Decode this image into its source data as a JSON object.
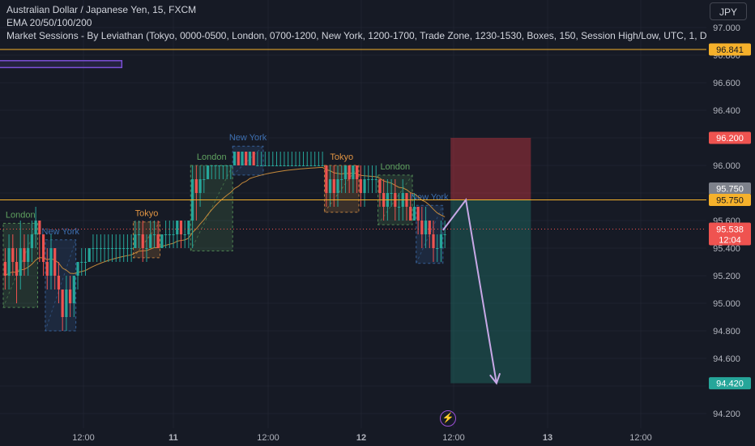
{
  "legend": {
    "symbol_line": "Australian Dollar / Japanese Yen, 15, FXCM",
    "ema_line": "EMA 20/50/100/200",
    "sessions_line": "Market Sessions - By Leviathan (Tokyo, 0000-0500, London, 0700-1200, New York, 1200-1700, Trade Zone, 1230-1530, Boxes, 150, Session High/Low, UTC, 1, D"
  },
  "currency_button": "JPY",
  "colors": {
    "background": "#161a25",
    "grid": "#1f2330",
    "up_candle": "#26a69a",
    "down_candle": "#ef5350",
    "ema": "#c5893a",
    "horizontal_line": "#f5b12b",
    "tokyo": "#e09443",
    "london": "#5fa15f",
    "new_york": "#3d6fb0",
    "stop_zone": "#a8323c",
    "target_zone": "#1e6e66",
    "arrow": "#c7a8e6",
    "highlight_box": "#7b4fd6",
    "current_price_line": "#ef5350"
  },
  "chart_data": {
    "type": "candlestick",
    "symbol": "Australian Dollar / Japanese Yen",
    "interval": "15",
    "source": "FXCM",
    "y_axis": {
      "ticks": [
        "97.000",
        "96.800",
        "96.600",
        "96.400",
        "96.200",
        "96.000",
        "95.800",
        "95.600",
        "95.400",
        "95.200",
        "95.000",
        "94.800",
        "94.600",
        "94.400",
        "94.200"
      ],
      "ylim": [
        94.15,
        97.05
      ]
    },
    "x_axis": {
      "ticks": [
        {
          "label": "12:00",
          "bold": false
        },
        {
          "label": "11",
          "bold": true
        },
        {
          "label": "12:00",
          "bold": false
        },
        {
          "label": "12",
          "bold": true
        },
        {
          "label": "12:00",
          "bold": false
        },
        {
          "label": "13",
          "bold": true
        },
        {
          "label": "12:00",
          "bold": false
        }
      ]
    },
    "price_labels": [
      {
        "value": "96.841",
        "price": 96.841,
        "kind": "line"
      },
      {
        "value": "96.200",
        "price": 96.2,
        "kind": "stop"
      },
      {
        "value": "95.750",
        "price": 95.75,
        "kind": "entry"
      },
      {
        "value": "95.750",
        "price": 95.75,
        "kind": "line"
      },
      {
        "value": "95.538",
        "countdown": "12:04",
        "price": 95.538,
        "kind": "last"
      },
      {
        "value": "94.420",
        "price": 94.42,
        "kind": "target"
      }
    ],
    "sessions": [
      {
        "label": "London",
        "type": "london",
        "start": 0,
        "end": 9,
        "high": 95.58,
        "low": 94.97
      },
      {
        "label": "New York",
        "type": "new_york",
        "start": 11,
        "end": 19,
        "high": 95.46,
        "low": 94.8
      },
      {
        "label": "Tokyo",
        "type": "tokyo",
        "start": 34,
        "end": 41,
        "high": 95.59,
        "low": 95.33
      },
      {
        "label": "London",
        "type": "london",
        "start": 49,
        "end": 60,
        "high": 96.0,
        "low": 95.38
      },
      {
        "label": "New York",
        "type": "new_york",
        "start": 60,
        "end": 68,
        "high": 96.14,
        "low": 95.93
      },
      {
        "label": "Tokyo",
        "type": "tokyo",
        "start": 84,
        "end": 93,
        "high": 96.0,
        "low": 95.66
      },
      {
        "label": "London",
        "type": "london",
        "start": 98,
        "end": 107,
        "high": 95.93,
        "low": 95.57
      },
      {
        "label": "New York",
        "type": "new_york",
        "start": 108,
        "end": 115,
        "high": 95.71,
        "low": 95.29
      }
    ],
    "horizontal_lines": [
      96.841,
      95.75
    ],
    "current_price": 95.538,
    "position": {
      "entry": 95.75,
      "stop": 96.2,
      "target": 94.42,
      "start": 117,
      "end": 138
    },
    "projection_arrow": [
      {
        "bar": 115,
        "price": 95.53
      },
      {
        "bar": 121,
        "price": 95.75
      },
      {
        "bar": 129,
        "price": 94.42
      }
    ],
    "highlight_box": {
      "start": 0,
      "end": 31,
      "high": 96.76,
      "low": 96.71
    },
    "candles": [
      [
        95.3,
        95.2,
        95.4,
        95.1
      ],
      [
        95.2,
        95.4,
        95.5,
        95.1
      ],
      [
        95.4,
        95.3,
        95.5,
        95.2
      ],
      [
        95.3,
        95.2,
        95.4,
        95.0
      ],
      [
        95.2,
        95.4,
        95.6,
        95.1
      ],
      [
        95.4,
        95.3,
        95.5,
        95.2
      ],
      [
        95.3,
        95.4,
        95.5,
        95.2
      ],
      [
        95.4,
        95.5,
        95.6,
        95.3
      ],
      [
        95.5,
        95.6,
        95.7,
        95.4
      ],
      [
        95.6,
        95.5,
        95.6,
        95.3
      ],
      [
        95.5,
        95.3,
        95.5,
        95.2
      ],
      [
        95.3,
        95.2,
        95.4,
        95.1
      ],
      [
        95.2,
        95.4,
        95.5,
        95.1
      ],
      [
        95.4,
        95.2,
        95.4,
        95.1
      ],
      [
        95.2,
        95.1,
        95.3,
        95.0
      ],
      [
        95.1,
        94.9,
        95.1,
        94.8
      ],
      [
        94.9,
        95.1,
        95.2,
        94.8
      ],
      [
        95.1,
        95.0,
        95.2,
        94.9
      ],
      [
        95.0,
        95.2,
        95.2,
        94.9
      ],
      [
        95.2,
        95.3,
        95.3,
        95.1
      ],
      [
        95.3,
        95.3,
        95.4,
        95.2
      ],
      [
        95.3,
        95.3,
        95.4,
        95.2
      ],
      [
        95.3,
        95.4,
        95.4,
        95.3
      ],
      [
        95.4,
        95.4,
        95.5,
        95.3
      ],
      [
        95.4,
        95.4,
        95.5,
        95.3
      ],
      [
        95.4,
        95.4,
        95.5,
        95.3
      ],
      [
        95.4,
        95.4,
        95.5,
        95.3
      ],
      [
        95.4,
        95.4,
        95.5,
        95.3
      ],
      [
        95.4,
        95.4,
        95.5,
        95.3
      ],
      [
        95.4,
        95.4,
        95.5,
        95.3
      ],
      [
        95.4,
        95.4,
        95.5,
        95.3
      ],
      [
        95.4,
        95.4,
        95.5,
        95.3
      ],
      [
        95.4,
        95.4,
        95.5,
        95.3
      ],
      [
        95.4,
        95.4,
        95.5,
        95.3
      ],
      [
        95.4,
        95.5,
        95.6,
        95.4
      ],
      [
        95.5,
        95.5,
        95.6,
        95.4
      ],
      [
        95.5,
        95.4,
        95.6,
        95.3
      ],
      [
        95.4,
        95.4,
        95.5,
        95.3
      ],
      [
        95.4,
        95.5,
        95.6,
        95.4
      ],
      [
        95.5,
        95.5,
        95.6,
        95.4
      ],
      [
        95.5,
        95.4,
        95.6,
        95.4
      ],
      [
        95.4,
        95.5,
        95.5,
        95.4
      ],
      [
        95.5,
        95.5,
        95.6,
        95.4
      ],
      [
        95.5,
        95.5,
        95.6,
        95.4
      ],
      [
        95.5,
        95.5,
        95.6,
        95.4
      ],
      [
        95.5,
        95.6,
        95.6,
        95.4
      ],
      [
        95.6,
        95.5,
        95.6,
        95.4
      ],
      [
        95.5,
        95.5,
        95.6,
        95.4
      ],
      [
        95.5,
        95.6,
        95.6,
        95.4
      ],
      [
        95.6,
        95.9,
        96.0,
        95.4
      ],
      [
        95.9,
        95.8,
        96.0,
        95.6
      ],
      [
        95.8,
        95.9,
        96.0,
        95.7
      ],
      [
        95.9,
        95.9,
        96.0,
        95.8
      ],
      [
        95.9,
        96.0,
        96.0,
        95.9
      ],
      [
        96.0,
        96.0,
        96.0,
        95.9
      ],
      [
        96.0,
        96.0,
        96.0,
        95.9
      ],
      [
        96.0,
        96.0,
        96.0,
        95.9
      ],
      [
        96.0,
        96.0,
        96.0,
        95.9
      ],
      [
        96.0,
        96.0,
        96.0,
        95.9
      ],
      [
        96.0,
        96.0,
        96.0,
        95.9
      ],
      [
        96.0,
        96.1,
        96.1,
        96.0
      ],
      [
        96.1,
        96.0,
        96.1,
        96.0
      ],
      [
        96.0,
        96.1,
        96.1,
        96.0
      ],
      [
        96.1,
        96.0,
        96.1,
        96.0
      ],
      [
        96.0,
        96.1,
        96.1,
        96.0
      ],
      [
        96.1,
        96.0,
        96.1,
        96.0
      ],
      [
        96.0,
        96.0,
        96.1,
        96.0
      ],
      [
        96.0,
        96.0,
        96.1,
        96.0
      ],
      [
        96.0,
        96.0,
        96.1,
        96.0
      ],
      [
        96.0,
        96.0,
        96.1,
        96.0
      ],
      [
        96.0,
        96.0,
        96.1,
        96.0
      ],
      [
        96.0,
        96.0,
        96.1,
        96.0
      ],
      [
        96.0,
        96.0,
        96.1,
        96.0
      ],
      [
        96.0,
        96.0,
        96.1,
        96.0
      ],
      [
        96.0,
        96.0,
        96.1,
        96.0
      ],
      [
        96.0,
        96.0,
        96.1,
        96.0
      ],
      [
        96.0,
        96.0,
        96.1,
        96.0
      ],
      [
        96.0,
        96.0,
        96.1,
        96.0
      ],
      [
        96.0,
        96.0,
        96.1,
        96.0
      ],
      [
        96.0,
        96.0,
        96.1,
        96.0
      ],
      [
        96.0,
        96.0,
        96.1,
        96.0
      ],
      [
        96.0,
        96.0,
        96.1,
        96.0
      ],
      [
        96.0,
        96.0,
        96.1,
        96.0
      ],
      [
        96.0,
        96.0,
        96.1,
        96.0
      ],
      [
        96.0,
        95.8,
        96.0,
        95.7
      ],
      [
        95.8,
        95.9,
        96.0,
        95.7
      ],
      [
        95.9,
        95.8,
        96.0,
        95.7
      ],
      [
        95.8,
        95.9,
        96.0,
        95.7
      ],
      [
        95.9,
        95.9,
        96.0,
        95.8
      ],
      [
        95.9,
        96.0,
        96.0,
        95.8
      ],
      [
        96.0,
        95.9,
        96.0,
        95.8
      ],
      [
        95.9,
        96.0,
        96.0,
        95.8
      ],
      [
        96.0,
        95.9,
        96.0,
        95.8
      ],
      [
        95.9,
        95.8,
        96.0,
        95.7
      ],
      [
        95.8,
        95.9,
        96.0,
        95.7
      ],
      [
        95.9,
        95.9,
        96.0,
        95.8
      ],
      [
        95.9,
        95.9,
        96.0,
        95.8
      ],
      [
        95.9,
        95.9,
        96.0,
        95.8
      ],
      [
        95.9,
        95.8,
        95.9,
        95.7
      ],
      [
        95.8,
        95.7,
        95.9,
        95.6
      ],
      [
        95.7,
        95.8,
        95.9,
        95.6
      ],
      [
        95.8,
        95.8,
        95.9,
        95.7
      ],
      [
        95.8,
        95.7,
        95.9,
        95.6
      ],
      [
        95.7,
        95.7,
        95.8,
        95.6
      ],
      [
        95.7,
        95.8,
        95.9,
        95.6
      ],
      [
        95.8,
        95.7,
        95.8,
        95.6
      ],
      [
        95.7,
        95.6,
        95.8,
        95.6
      ],
      [
        95.6,
        95.7,
        95.8,
        95.6
      ],
      [
        95.7,
        95.6,
        95.7,
        95.5
      ],
      [
        95.6,
        95.5,
        95.7,
        95.4
      ],
      [
        95.5,
        95.6,
        95.7,
        95.4
      ],
      [
        95.6,
        95.5,
        95.6,
        95.4
      ],
      [
        95.5,
        95.4,
        95.6,
        95.3
      ],
      [
        95.4,
        95.4,
        95.5,
        95.3
      ],
      [
        95.4,
        95.5,
        95.6,
        95.3
      ],
      [
        95.5,
        95.5,
        95.6,
        95.4
      ]
    ]
  }
}
